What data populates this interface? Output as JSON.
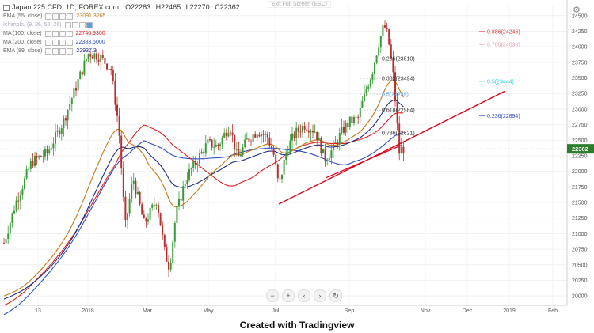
{
  "header": {
    "symbol": "Japan 225 CFD, 1D, FOREX.com",
    "ohlc": {
      "open": "O22283",
      "high": "H22465",
      "low": "L22270",
      "close": "C22362"
    },
    "exit_fullscreen": "Exit Full Screen (ESC)"
  },
  "legend": [
    {
      "name": "EMA (55, close)",
      "value": "23091.3265",
      "color": "#c07a1a"
    },
    {
      "name": "Ichimoku (9, 26, 52, 26)",
      "value": "",
      "color": "#5aa0e0"
    },
    {
      "name": "MA (100, close)",
      "value": "22746.9300",
      "color": "#e02020"
    },
    {
      "name": "MA (200, close)",
      "value": "22383.5000",
      "color": "#3050c0"
    },
    {
      "name": "EMA (89, close)",
      "value": "22937.3",
      "color": "#1d2c80"
    }
  ],
  "credit": "Created with Tradingview",
  "icons": {
    "settings": "gear-icon",
    "nav": [
      "minus-icon",
      "plus-icon",
      "chevron-left-icon",
      "chevron-right-icon",
      "reset-icon"
    ]
  },
  "colors": {
    "up": "#3a9a3a",
    "down": "#b83030",
    "trendline": "#e0001a",
    "grid": "#f0f0f0"
  },
  "chart_data": {
    "type": "candlestick",
    "yaxis": {
      "ticks": [
        20000,
        20250,
        20500,
        20750,
        21000,
        21250,
        21500,
        21750,
        22000,
        22250,
        22500,
        22750,
        23000,
        23250,
        23500,
        23750,
        24000,
        24250,
        24500
      ],
      "range": [
        19900,
        24650
      ]
    },
    "xaxis": {
      "ticks": [
        "13",
        "2018",
        "Mar",
        "May",
        "Jul",
        "Sep",
        "Nov",
        "Dec",
        "2019",
        "Feb"
      ]
    },
    "last_price": "22362",
    "fibonacci": [
      {
        "label": "0.236(23810)",
        "price": 23810,
        "color": "#333333"
      },
      {
        "label": "0.382(23494)",
        "price": 23494,
        "color": "#333333"
      },
      {
        "label": "0.5(23239)",
        "price": 23239,
        "color": "#4a9ad8"
      },
      {
        "label": "0.618(22984)",
        "price": 22984,
        "color": "#333333"
      },
      {
        "label": "0.786(22621)",
        "price": 22621,
        "color": "#333333"
      }
    ],
    "extensions": [
      {
        "label": "0.886(24246)",
        "price": 24246,
        "color": "#e04040"
      },
      {
        "label": "0.786(24038)",
        "price": 24038,
        "color": "#e8a0b0"
      },
      {
        "label": "0.5(23444)",
        "price": 23444,
        "color": "#20d0e0"
      },
      {
        "label": "0.236(22894)",
        "price": 22894,
        "color": "#3050c0"
      }
    ]
  }
}
